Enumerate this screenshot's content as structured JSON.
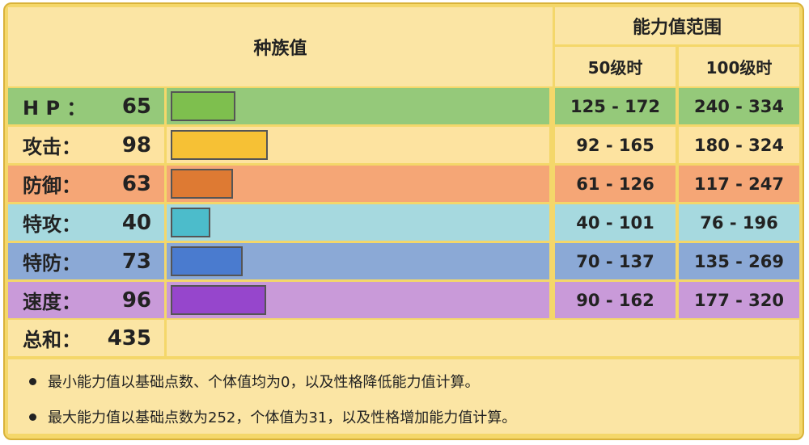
{
  "headers": {
    "base_stats": "种族值",
    "stat_range": "能力值范围",
    "level50": "50级时",
    "level100": "100级时"
  },
  "max_stat": 200,
  "stats": [
    {
      "name": "H P ：",
      "value": "65",
      "num": 65,
      "range50": "125 - 172",
      "range100": "240 - 334",
      "row_color": "#95c97a",
      "bar_color": "#7ebf4e"
    },
    {
      "name": "攻击：",
      "value": "98",
      "num": 98,
      "range50": "92 - 165",
      "range100": "180 - 324",
      "row_color": "#fde3a0",
      "bar_color": "#f6c135"
    },
    {
      "name": "防御：",
      "value": "63",
      "num": 63,
      "range50": "61 - 126",
      "range100": "117 - 247",
      "row_color": "#f5a676",
      "bar_color": "#de7a33"
    },
    {
      "name": "特攻：",
      "value": "40",
      "num": 40,
      "range50": "40 - 101",
      "range100": "76 - 196",
      "row_color": "#a6d9df",
      "bar_color": "#4cbccb"
    },
    {
      "name": "特防：",
      "value": "73",
      "num": 73,
      "range50": "70 - 137",
      "range100": "135 - 269",
      "row_color": "#8ba9d6",
      "bar_color": "#4a7bcf"
    },
    {
      "name": "速度：",
      "value": "96",
      "num": 96,
      "range50": "90 - 162",
      "range100": "177 - 320",
      "row_color": "#c99ad9",
      "bar_color": "#9646cc"
    }
  ],
  "total": {
    "name": "总和：",
    "value": "435"
  },
  "notes": [
    "最小能力值以基础点数、个体值均为0，以及性格降低能力值计算。",
    "最大能力值以基础点数为252，个体值为31，以及性格增加能力值计算。"
  ]
}
